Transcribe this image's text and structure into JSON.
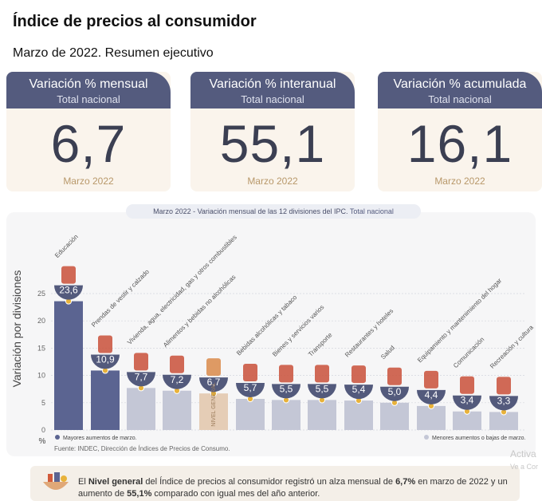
{
  "header": {
    "title": "Índice de precios al consumidor",
    "subtitle": "Marzo de 2022. Resumen ejecutivo"
  },
  "cards": [
    {
      "label": "Variación % mensual",
      "sub": "Total nacional",
      "value": "6,7",
      "period": "Marzo 2022"
    },
    {
      "label": "Variación % interanual",
      "sub": "Total nacional",
      "value": "55,1",
      "period": "Marzo 2022"
    },
    {
      "label": "Variación % acumulada",
      "sub": "Total nacional",
      "value": "16,1",
      "period": "Marzo 2022"
    }
  ],
  "chart_caption": {
    "period": "Marzo 2022",
    "text": " - Variación mensual de las 12 divisiones del IPC. ",
    "scope": "Total nacional"
  },
  "chart_data": {
    "type": "bar",
    "ylabel": "Variación por divisiones",
    "yunit": "%",
    "ylim": [
      0,
      25
    ],
    "yticks": [
      0,
      5,
      10,
      15,
      20,
      25
    ],
    "categories": [
      "Educación",
      "Prendas de vestir y calzado",
      "Vivienda, agua, electricidad, gas y otros combustibles",
      "Alimentos y bebidas no alcohólicas",
      "NIVEL GENERAL",
      "Bebidas alcohólicas y tabaco",
      "Bienes y servicios varios",
      "Transporte",
      "Restaurantes y hoteles",
      "Salud",
      "Equipamiento y mantenimiento del hogar",
      "Comunicación",
      "Recreación y cultura"
    ],
    "values": [
      23.6,
      10.9,
      7.7,
      7.2,
      6.7,
      5.7,
      5.5,
      5.5,
      5.4,
      5.0,
      4.4,
      3.4,
      3.3
    ],
    "value_labels": [
      "23,6",
      "10,9",
      "7,7",
      "7,2",
      "6,7",
      "5,7",
      "5,5",
      "5,5",
      "5,4",
      "5,0",
      "4,4",
      "3,4",
      "3,3"
    ],
    "bar_groups": [
      "mayores",
      "mayores",
      "menores",
      "menores",
      "general",
      "menores",
      "menores",
      "menores",
      "menores",
      "menores",
      "menores",
      "menores",
      "menores"
    ],
    "colors": {
      "mayores": "#5b6491",
      "menores": "#c4c7d6",
      "general": "#e5cdb6",
      "dot": "#e8b23a",
      "bubble": "#535a7c"
    },
    "legend": [
      {
        "group": "mayores",
        "label": "Mayores aumentos de marzo."
      },
      {
        "group": "menores",
        "label": "Menores aumentos o bajas de marzo."
      }
    ],
    "source": "Fuente: INDEC, Dirección de Índices de Precios de Consumo.",
    "grid": true,
    "legend_position": "bottom"
  },
  "note": {
    "p1": "El ",
    "b1": "Nivel general",
    "p2": " del Índice de precios al consumidor registró un alza mensual de ",
    "b2": "6,7%",
    "p3": " en marzo de 2022 y un aumento de ",
    "b3": "55,1%",
    "p4": " comparado con igual mes del año anterior."
  },
  "watermark": {
    "line1": "Activa",
    "line2": "Ve a Cor"
  }
}
